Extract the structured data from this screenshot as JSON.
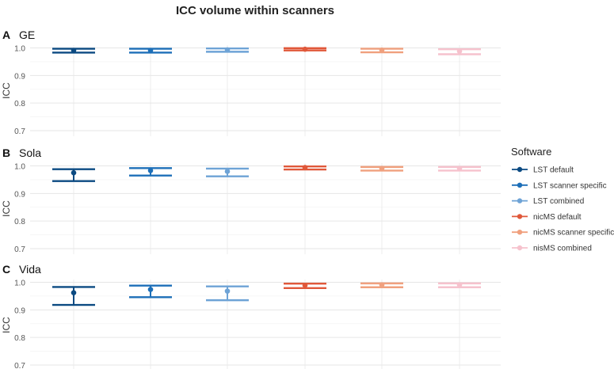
{
  "figure": {
    "title": "ICC volume within scanners",
    "colors": {
      "LST default": "#0b4a82",
      "LST scanner specific": "#1d6fb8",
      "LST combined": "#6ea3d6",
      "nicMS default": "#e0583a",
      "nicMS scanner specific": "#f0a07e",
      "nisMS combined": "#f6c2cd"
    },
    "grid": true,
    "legend_position": "right"
  },
  "legend": {
    "title": "Software",
    "items": [
      "LST default",
      "LST scanner specific",
      "LST combined",
      "nicMS default",
      "nicMS scanner specific",
      "nisMS combined"
    ]
  },
  "chart_data": [
    {
      "type": "errorbar",
      "tag": "A",
      "title": "GE",
      "ylabel": "ICC",
      "ylim": [
        0.68,
        1.01
      ],
      "yticks": [
        "0.7",
        "0.8",
        "0.9",
        "1.0"
      ],
      "series": [
        {
          "name": "LST default",
          "estimate": 0.991,
          "lower": 0.983,
          "upper": 0.997
        },
        {
          "name": "LST scanner specific",
          "estimate": 0.991,
          "lower": 0.983,
          "upper": 0.997
        },
        {
          "name": "LST combined",
          "estimate": 0.993,
          "lower": 0.986,
          "upper": 0.998
        },
        {
          "name": "nicMS default",
          "estimate": 0.995,
          "lower": 0.991,
          "upper": 0.999
        },
        {
          "name": "nicMS scanner specific",
          "estimate": 0.992,
          "lower": 0.984,
          "upper": 0.997
        },
        {
          "name": "nisMS combined",
          "estimate": 0.988,
          "lower": 0.977,
          "upper": 0.995
        }
      ]
    },
    {
      "type": "errorbar",
      "tag": "B",
      "title": "Sola",
      "ylabel": "ICC",
      "ylim": [
        0.68,
        1.01
      ],
      "yticks": [
        "0.7",
        "0.8",
        "0.9",
        "1.0"
      ],
      "series": [
        {
          "name": "LST default",
          "estimate": 0.975,
          "lower": 0.945,
          "upper": 0.988
        },
        {
          "name": "LST scanner specific",
          "estimate": 0.983,
          "lower": 0.965,
          "upper": 0.992
        },
        {
          "name": "LST combined",
          "estimate": 0.98,
          "lower": 0.962,
          "upper": 0.99
        },
        {
          "name": "nicMS default",
          "estimate": 0.994,
          "lower": 0.987,
          "upper": 0.998
        },
        {
          "name": "nicMS scanner specific",
          "estimate": 0.991,
          "lower": 0.983,
          "upper": 0.996
        },
        {
          "name": "nisMS combined",
          "estimate": 0.991,
          "lower": 0.983,
          "upper": 0.996
        }
      ]
    },
    {
      "type": "errorbar",
      "tag": "C",
      "title": "Vida",
      "ylabel": "ICC",
      "ylim": [
        0.68,
        1.01
      ],
      "yticks": [
        "0.7",
        "0.8",
        "0.9",
        "1.0"
      ],
      "series": [
        {
          "name": "LST default",
          "estimate": 0.962,
          "lower": 0.918,
          "upper": 0.983
        },
        {
          "name": "LST scanner specific",
          "estimate": 0.974,
          "lower": 0.946,
          "upper": 0.988
        },
        {
          "name": "LST combined",
          "estimate": 0.968,
          "lower": 0.935,
          "upper": 0.985
        },
        {
          "name": "nicMS default",
          "estimate": 0.989,
          "lower": 0.979,
          "upper": 0.995
        },
        {
          "name": "nicMS scanner specific",
          "estimate": 0.991,
          "lower": 0.982,
          "upper": 0.996
        },
        {
          "name": "nisMS combined",
          "estimate": 0.991,
          "lower": 0.982,
          "upper": 0.996
        }
      ]
    }
  ]
}
